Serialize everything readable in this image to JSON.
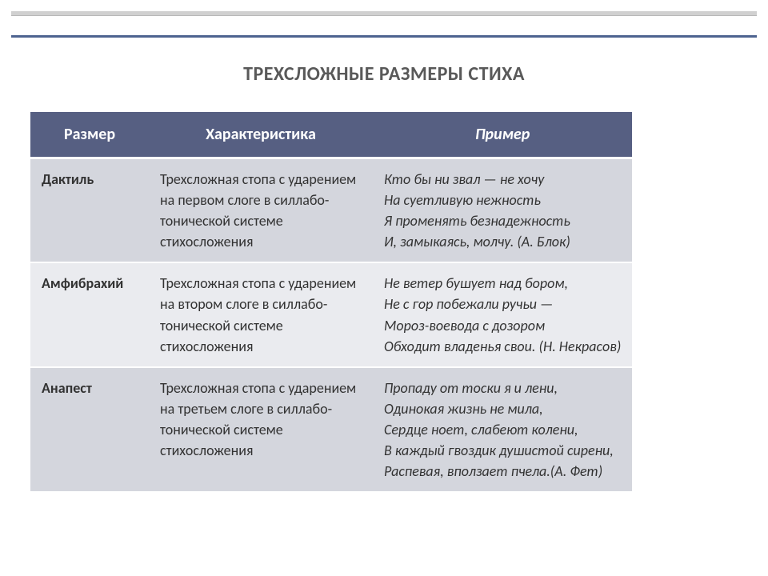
{
  "title": "ТРЕХСЛОЖНЫЕ РАЗМЕРЫ СТИХА",
  "headers": {
    "c1": "Размер",
    "c2": "Характеристика",
    "c3": "Пример"
  },
  "rows": [
    {
      "name": "Дактиль",
      "char": "Трехсложная стопа с ударением на первом слоге в силлабо-тонической системе стихосложения",
      "ex": "Кто бы ни звал — не хочу\nНа суетливую нежность\nЯ променять безнадежность\nИ, замыкаясь, молчу.  (А. Блок)"
    },
    {
      "name": "Амфибрахий",
      "char": "Трехсложная стопа с ударением на втором слоге в силлабо-тонической системе стихосложения",
      "ex": "Не ветер бушует над бором,\nНе с гор побежали ручьи —\nМороз-воевода с дозором\nОбходит владенья свои. (Н. Некрасов)"
    },
    {
      "name": "Анапест",
      "char": "Трехсложная стопа с ударением на третьем слоге в силлабо-тонической системе стихосложения",
      "ex": "Пропаду от тоски я и лени,\nОдинокая жизнь не мила,\nСердце ноет, слабеют колени,\nВ каждый гвоздик душистой сирени,\nРаспевая, вползает пчела.(А. Фет)"
    }
  ],
  "colors": {
    "header_bg": "#565f82",
    "row_even": "#d4d6dd",
    "row_odd": "#eaebef",
    "accent": "#4d6390",
    "title_color": "#595959"
  },
  "fonts": {
    "title_pt": 24,
    "header_pt": 20,
    "body_pt": 18
  }
}
